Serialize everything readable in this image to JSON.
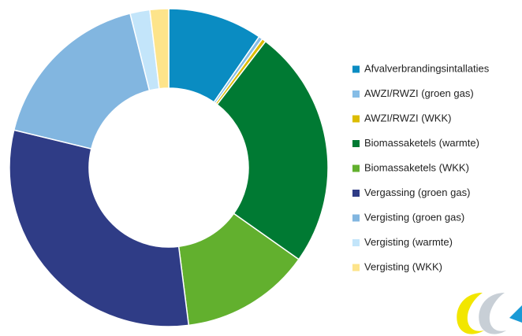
{
  "chart_data": {
    "type": "pie",
    "donut": true,
    "categories": [
      "Afvalverbrandingsintallaties",
      "AWZI/RWZI (groen gas)",
      "AWZI/RWZI (WKK)",
      "Biomassaketels (warmte)",
      "Biomassaketels (WKK)",
      "Vergassing (groen gas)",
      "Vergisting (groen gas)",
      "Vergisting (warmte)",
      "Vergisting (WKK)"
    ],
    "values": [
      9.6,
      0.4,
      0.4,
      24.4,
      13.2,
      30.8,
      17.3,
      2.0,
      1.9
    ],
    "colors": [
      "#0a8cc2",
      "#86bde6",
      "#dcbc00",
      "#007a33",
      "#62b02e",
      "#2f3c86",
      "#82b6e0",
      "#c3e5fa",
      "#fde48b"
    ],
    "legend": "right"
  }
}
